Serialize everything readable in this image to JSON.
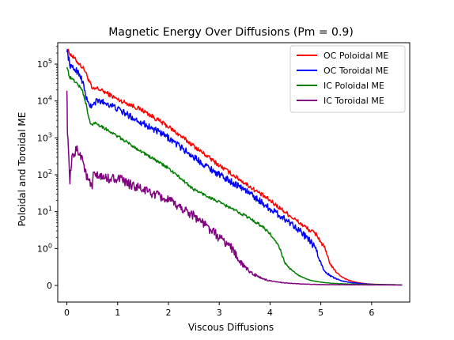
{
  "chart_data": {
    "type": "line",
    "title": "Magnetic Energy Over Diffusions (Pm = 0.9)",
    "xlabel": "Viscous Diffusions",
    "ylabel": "Poloidal and Toroidal ME",
    "xlim": [
      -0.18,
      6.75
    ],
    "x_ticks": [
      0,
      1,
      2,
      3,
      4,
      5,
      6
    ],
    "y_scale": "symlog",
    "y_ticks": [
      {
        "value": 0,
        "label": "0"
      },
      {
        "value": 1,
        "label": "10^0"
      },
      {
        "value": 10,
        "label": "10^1"
      },
      {
        "value": 100,
        "label": "10^2"
      },
      {
        "value": 1000,
        "label": "10^3"
      },
      {
        "value": 10000,
        "label": "10^4"
      },
      {
        "value": 100000,
        "label": "10^5"
      }
    ],
    "legend_position": "top-right",
    "grid": false,
    "series": [
      {
        "name": "OC Poloidal ME",
        "color": "#ff0000",
        "noise": 0.06,
        "x": [
          0,
          0.03,
          0.08,
          0.15,
          0.25,
          0.35,
          0.42,
          0.48,
          0.5,
          0.6,
          0.8,
          1.0,
          1.2,
          1.5,
          2.0,
          2.5,
          3.0,
          3.5,
          4.0,
          4.5,
          4.8,
          4.92,
          5.0,
          5.2,
          5.4,
          5.6,
          5.8,
          6.0,
          6.3,
          6.6
        ],
        "y": [
          250000,
          220000,
          180000,
          140000,
          100000,
          70000,
          40000,
          25000,
          20000,
          22000,
          16000,
          11000,
          8500,
          5500,
          2000,
          600,
          180,
          60,
          20,
          6,
          3,
          2.4,
          1.5,
          0.55,
          0.25,
          0.12,
          0.06,
          0.035,
          0.02,
          0.015
        ]
      },
      {
        "name": "OC Toroidal ME",
        "color": "#0000ff",
        "noise": 0.09,
        "x": [
          0,
          0.03,
          0.08,
          0.15,
          0.25,
          0.32,
          0.38,
          0.43,
          0.47,
          0.5,
          0.55,
          0.6,
          0.7,
          0.85,
          1.0,
          1.3,
          1.5,
          2.0,
          2.5,
          3.0,
          3.5,
          4.0,
          4.5,
          4.8,
          4.95,
          5.05,
          5.2,
          5.5,
          5.8,
          6.0,
          6.3,
          6.6
        ],
        "y": [
          260000,
          150000,
          80000,
          75000,
          55000,
          30000,
          12000,
          8000,
          7500,
          7000,
          9000,
          10000,
          9500,
          8000,
          6000,
          3500,
          2500,
          1000,
          300,
          100,
          40,
          12,
          4,
          1.5,
          0.8,
          0.45,
          0.25,
          0.1,
          0.05,
          0.03,
          0.02,
          0.015
        ]
      },
      {
        "name": "IC Poloidal ME",
        "color": "#008000",
        "noise": 0.04,
        "x": [
          0,
          0.05,
          0.1,
          0.2,
          0.3,
          0.38,
          0.42,
          0.46,
          0.5,
          0.55,
          0.7,
          1.0,
          1.5,
          2.0,
          2.5,
          3.0,
          3.5,
          3.85,
          4.0,
          4.1,
          4.3,
          4.6,
          4.8,
          5.0,
          5.2,
          5.5,
          5.8,
          6.0,
          6.3,
          6.6
        ],
        "y": [
          90000,
          45000,
          40000,
          30000,
          20000,
          8000,
          4000,
          2500,
          2200,
          2600,
          2000,
          1100,
          400,
          150,
          40,
          18,
          8,
          4,
          2.5,
          1.6,
          0.6,
          0.25,
          0.14,
          0.09,
          0.06,
          0.04,
          0.03,
          0.025,
          0.02,
          0.015
        ]
      },
      {
        "name": "IC Toroidal ME",
        "color": "#800080",
        "noise": 0.13,
        "x": [
          0,
          0.01,
          0.02,
          0.04,
          0.06,
          0.08,
          0.1,
          0.15,
          0.2,
          0.3,
          0.35,
          0.4,
          0.45,
          0.5,
          0.52,
          0.6,
          0.8,
          1.0,
          1.3,
          1.6,
          2.0,
          2.5,
          3.0,
          3.2,
          3.5,
          3.8,
          4.0,
          4.3,
          4.6,
          5.0,
          5.5,
          6.0,
          6.6
        ],
        "y": [
          25000,
          2000,
          800,
          200,
          65,
          150,
          250,
          400,
          500,
          300,
          150,
          80,
          60,
          40,
          100,
          90,
          80,
          80,
          50,
          35,
          20,
          8,
          2,
          1.2,
          0.5,
          0.22,
          0.12,
          0.07,
          0.04,
          0.025,
          0.018,
          0.015,
          0.012
        ]
      }
    ]
  }
}
